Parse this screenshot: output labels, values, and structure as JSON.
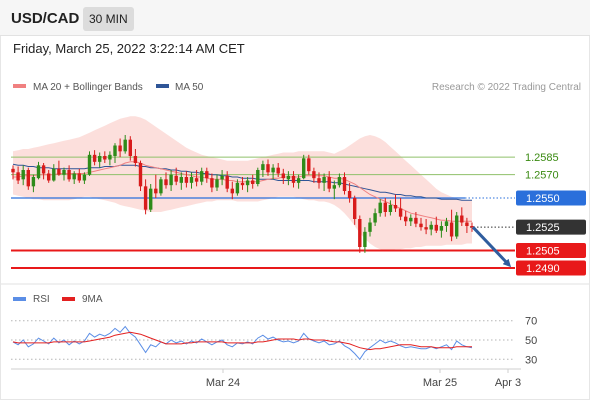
{
  "header": {
    "symbol": "USD/CAD",
    "timeframe": "30 MIN"
  },
  "datetime": "Friday, March 25, 2022 3:22:14 AM CET",
  "legend": {
    "ma20_label": "MA 20 + Bollinger Bands",
    "ma20_color": "#f08080",
    "ma50_label": "MA 50",
    "ma50_color": "#2f5597",
    "credit": "Research © 2022 Trading Central"
  },
  "chart_data": [
    {
      "type": "candlestick",
      "ylim": [
        1.2478,
        1.2634
      ],
      "x_labels": [
        "Mar 24",
        "Mar 25",
        "Apr 3"
      ],
      "levels": [
        {
          "value": 1.2585,
          "label": "1.2585",
          "kind": "resistance-thin",
          "color": "#8fc06a"
        },
        {
          "value": 1.257,
          "label": "1.2570",
          "kind": "resistance-thin",
          "color": "#8fc06a"
        },
        {
          "value": 1.255,
          "label": "1.2550",
          "kind": "pivot",
          "color": "#2a6fdb"
        },
        {
          "value": 1.2525,
          "label": "1.2525",
          "kind": "last-price",
          "color": "#333333"
        },
        {
          "value": 1.2505,
          "label": "1.2505",
          "kind": "support",
          "color": "#e8191a"
        },
        {
          "value": 1.249,
          "label": "1.2490",
          "kind": "support",
          "color": "#e8191a"
        }
      ],
      "candles": [
        [
          1.2575,
          1.2578,
          1.2566,
          1.2572
        ],
        [
          1.2572,
          1.2577,
          1.2562,
          1.2565
        ],
        [
          1.2566,
          1.2578,
          1.2561,
          1.2574
        ],
        [
          1.2574,
          1.2576,
          1.2557,
          1.256
        ],
        [
          1.256,
          1.257,
          1.2555,
          1.2568
        ],
        [
          1.2567,
          1.2581,
          1.2566,
          1.2578
        ],
        [
          1.2578,
          1.258,
          1.2566,
          1.2571
        ],
        [
          1.2571,
          1.2574,
          1.2563,
          1.2565
        ],
        [
          1.2565,
          1.2579,
          1.2564,
          1.2575
        ],
        [
          1.2575,
          1.2582,
          1.2569,
          1.257
        ],
        [
          1.257,
          1.2576,
          1.2565,
          1.2574
        ],
        [
          1.2574,
          1.2578,
          1.2564,
          1.2566
        ],
        [
          1.2566,
          1.2573,
          1.2562,
          1.2571
        ],
        [
          1.2571,
          1.2575,
          1.2563,
          1.2565
        ],
        [
          1.2565,
          1.2572,
          1.2562,
          1.257
        ],
        [
          1.257,
          1.259,
          1.2569,
          1.2587
        ],
        [
          1.2587,
          1.2591,
          1.2578,
          1.2581
        ],
        [
          1.2581,
          1.2589,
          1.2576,
          1.2586
        ],
        [
          1.2586,
          1.259,
          1.258,
          1.2583
        ],
        [
          1.2583,
          1.259,
          1.2578,
          1.2587
        ],
        [
          1.2586,
          1.2597,
          1.258,
          1.2595
        ],
        [
          1.2595,
          1.2601,
          1.2585,
          1.259
        ],
        [
          1.259,
          1.2604,
          1.2588,
          1.26
        ],
        [
          1.26,
          1.2603,
          1.2582,
          1.2586
        ],
        [
          1.2586,
          1.2592,
          1.2577,
          1.258
        ],
        [
          1.258,
          1.2582,
          1.2556,
          1.256
        ],
        [
          1.256,
          1.2566,
          1.2536,
          1.254
        ],
        [
          1.254,
          1.2562,
          1.2538,
          1.2558
        ],
        [
          1.2558,
          1.257,
          1.255,
          1.2554
        ],
        [
          1.2554,
          1.2568,
          1.2552,
          1.2566
        ],
        [
          1.2566,
          1.2572,
          1.2558,
          1.2561
        ],
        [
          1.2561,
          1.2574,
          1.2556,
          1.257
        ],
        [
          1.2569,
          1.2576,
          1.2561,
          1.2564
        ],
        [
          1.2563,
          1.2572,
          1.2557,
          1.2568
        ],
        [
          1.2568,
          1.2573,
          1.2559,
          1.2563
        ],
        [
          1.2563,
          1.2572,
          1.2558,
          1.2568
        ],
        [
          1.2567,
          1.2574,
          1.256,
          1.2564
        ],
        [
          1.2564,
          1.2576,
          1.2561,
          1.2573
        ],
        [
          1.2573,
          1.2576,
          1.2563,
          1.2567
        ],
        [
          1.2567,
          1.2571,
          1.2555,
          1.2559
        ],
        [
          1.2559,
          1.257,
          1.2556,
          1.2566
        ],
        [
          1.2566,
          1.2574,
          1.2561,
          1.2569
        ],
        [
          1.2569,
          1.2573,
          1.2555,
          1.2558
        ],
        [
          1.2558,
          1.2564,
          1.2549,
          1.2554
        ],
        [
          1.2554,
          1.2566,
          1.2552,
          1.2563
        ],
        [
          1.2563,
          1.2568,
          1.2557,
          1.2561
        ],
        [
          1.2561,
          1.2568,
          1.2555,
          1.2565
        ],
        [
          1.2565,
          1.257,
          1.2558,
          1.2562
        ],
        [
          1.2562,
          1.2576,
          1.256,
          1.2574
        ],
        [
          1.2574,
          1.2582,
          1.2568,
          1.2579
        ],
        [
          1.2579,
          1.2583,
          1.2569,
          1.2572
        ],
        [
          1.2572,
          1.2579,
          1.2566,
          1.2576
        ],
        [
          1.2576,
          1.258,
          1.2568,
          1.2571
        ],
        [
          1.2571,
          1.2575,
          1.2562,
          1.2567
        ],
        [
          1.2566,
          1.2573,
          1.2561,
          1.2569
        ],
        [
          1.2569,
          1.2573,
          1.2559,
          1.2563
        ],
        [
          1.2563,
          1.257,
          1.2558,
          1.2567
        ],
        [
          1.2567,
          1.2587,
          1.2566,
          1.2584
        ],
        [
          1.2584,
          1.2587,
          1.257,
          1.2573
        ],
        [
          1.2573,
          1.2576,
          1.2563,
          1.2567
        ],
        [
          1.2567,
          1.2572,
          1.2558,
          1.2563
        ],
        [
          1.2563,
          1.2571,
          1.2556,
          1.2568
        ],
        [
          1.2568,
          1.2573,
          1.2555,
          1.2558
        ],
        [
          1.2558,
          1.2565,
          1.2549,
          1.2561
        ],
        [
          1.2561,
          1.2571,
          1.2559,
          1.2568
        ],
        [
          1.2568,
          1.2572,
          1.2553,
          1.2556
        ],
        [
          1.2556,
          1.2563,
          1.2546,
          1.255
        ],
        [
          1.255,
          1.2552,
          1.2527,
          1.2532
        ],
        [
          1.2532,
          1.2535,
          1.2503,
          1.2508
        ],
        [
          1.2508,
          1.2525,
          1.2503,
          1.2521
        ],
        [
          1.2521,
          1.2533,
          1.2517,
          1.2529
        ],
        [
          1.2529,
          1.2541,
          1.2526,
          1.2537
        ],
        [
          1.2537,
          1.2549,
          1.2534,
          1.2546
        ],
        [
          1.2546,
          1.255,
          1.2534,
          1.2538
        ],
        [
          1.2538,
          1.2548,
          1.2535,
          1.2544
        ],
        [
          1.2544,
          1.2553,
          1.2538,
          1.2541
        ],
        [
          1.2541,
          1.255,
          1.2531,
          1.2534
        ],
        [
          1.2534,
          1.2539,
          1.2526,
          1.253
        ],
        [
          1.253,
          1.2536,
          1.2526,
          1.2533
        ],
        [
          1.2533,
          1.2538,
          1.2525,
          1.2528
        ],
        [
          1.2528,
          1.2533,
          1.2522,
          1.2525
        ],
        [
          1.2525,
          1.2532,
          1.2519,
          1.2523
        ],
        [
          1.2523,
          1.253,
          1.2518,
          1.2527
        ],
        [
          1.2527,
          1.2534,
          1.252,
          1.2522
        ],
        [
          1.2522,
          1.253,
          1.2516,
          1.2526
        ],
        [
          1.2526,
          1.2533,
          1.2521,
          1.253
        ],
        [
          1.2529,
          1.254,
          1.2513,
          1.2517
        ],
        [
          1.2517,
          1.2538,
          1.2515,
          1.2535
        ],
        [
          1.2535,
          1.2542,
          1.2526,
          1.2529
        ],
        [
          1.2529,
          1.2533,
          1.252,
          1.2526
        ],
        [
          1.2526,
          1.2529,
          1.2521,
          1.2525
        ]
      ],
      "candle_colors": {
        "up": "#2e8b1a",
        "down": "#d81b1b"
      },
      "ma20": [
        1.2568,
        1.2568,
        1.2569,
        1.2569,
        1.2569,
        1.257,
        1.257,
        1.257,
        1.257,
        1.2571,
        1.2571,
        1.2571,
        1.2571,
        1.2571,
        1.2571,
        1.2572,
        1.2573,
        1.2574,
        1.2575,
        1.2576,
        1.2577,
        1.2578,
        1.258,
        1.2581,
        1.2581,
        1.258,
        1.2578,
        1.2577,
        1.2576,
        1.2575,
        1.2574,
        1.2573,
        1.2572,
        1.2571,
        1.257,
        1.2569,
        1.2568,
        1.2568,
        1.2567,
        1.2566,
        1.2566,
        1.2566,
        1.2565,
        1.2565,
        1.2564,
        1.2564,
        1.2564,
        1.2564,
        1.2564,
        1.2565,
        1.2566,
        1.2567,
        1.2567,
        1.2568,
        1.2568,
        1.2568,
        1.2568,
        1.2569,
        1.2569,
        1.2569,
        1.2569,
        1.2569,
        1.2568,
        1.2567,
        1.2567,
        1.2566,
        1.2564,
        1.2562,
        1.2559,
        1.2556,
        1.2553,
        1.2551,
        1.2549,
        1.2547,
        1.2545,
        1.2543,
        1.2541,
        1.2539,
        1.2537,
        1.2536,
        1.2535,
        1.2534,
        1.2533,
        1.2532,
        1.2531,
        1.2531,
        1.253,
        1.253,
        1.253,
        1.253,
        1.253
      ],
      "ma50": [
        1.2579,
        1.2578,
        1.2578,
        1.2577,
        1.2577,
        1.2576,
        1.2576,
        1.2576,
        1.2575,
        1.2575,
        1.2575,
        1.2575,
        1.2575,
        1.2575,
        1.2575,
        1.2576,
        1.2576,
        1.2576,
        1.2577,
        1.2577,
        1.2577,
        1.2578,
        1.2578,
        1.2578,
        1.2578,
        1.2577,
        1.2577,
        1.2576,
        1.2576,
        1.2575,
        1.2575,
        1.2574,
        1.2574,
        1.2573,
        1.2573,
        1.2572,
        1.2572,
        1.2571,
        1.2571,
        1.257,
        1.257,
        1.2569,
        1.2569,
        1.2568,
        1.2568,
        1.2567,
        1.2567,
        1.2567,
        1.2566,
        1.2566,
        1.2566,
        1.2566,
        1.2565,
        1.2565,
        1.2565,
        1.2565,
        1.2565,
        1.2565,
        1.2565,
        1.2564,
        1.2564,
        1.2564,
        1.2564,
        1.2563,
        1.2563,
        1.2562,
        1.2561,
        1.256,
        1.2559,
        1.2558,
        1.2557,
        1.2556,
        1.2555,
        1.2555,
        1.2554,
        1.2553,
        1.2553,
        1.2552,
        1.2552,
        1.2551,
        1.2551,
        1.255,
        1.255,
        1.255,
        1.2549,
        1.2549,
        1.2549,
        1.2549,
        1.2548,
        1.2548,
        1.2548
      ],
      "bb_upper": [
        1.259,
        1.2591,
        1.2592,
        1.2592,
        1.2593,
        1.2594,
        1.2595,
        1.2596,
        1.2597,
        1.2598,
        1.2599,
        1.26,
        1.2601,
        1.2602,
        1.2604,
        1.2606,
        1.2608,
        1.261,
        1.2612,
        1.2614,
        1.2616,
        1.2618,
        1.2619,
        1.262,
        1.262,
        1.2619,
        1.2617,
        1.2614,
        1.2611,
        1.2608,
        1.2605,
        1.2602,
        1.2599,
        1.2596,
        1.2593,
        1.2591,
        1.2589,
        1.2587,
        1.2586,
        1.2585,
        1.2584,
        1.2583,
        1.2582,
        1.2582,
        1.2582,
        1.2582,
        1.2582,
        1.2583,
        1.2584,
        1.2585,
        1.2586,
        1.2587,
        1.2588,
        1.2589,
        1.2589,
        1.2589,
        1.259,
        1.259,
        1.259,
        1.259,
        1.259,
        1.259,
        1.2589,
        1.2588,
        1.259,
        1.2592,
        1.2595,
        1.2598,
        1.2601,
        1.2603,
        1.2604,
        1.2603,
        1.2601,
        1.2598,
        1.2594,
        1.259,
        1.2586,
        1.2582,
        1.2578,
        1.2574,
        1.257,
        1.2566,
        1.2562,
        1.2558,
        1.2555,
        1.2553,
        1.2551,
        1.255,
        1.2549,
        1.2548,
        1.2548
      ],
      "bb_lower": [
        1.2553,
        1.2552,
        1.2551,
        1.255,
        1.2549,
        1.2549,
        1.2548,
        1.2548,
        1.2548,
        1.2548,
        1.2548,
        1.2548,
        1.2549,
        1.255,
        1.2551,
        1.2551,
        1.255,
        1.2549,
        1.2548,
        1.2547,
        1.2546,
        1.2544,
        1.2543,
        1.2542,
        1.2541,
        1.254,
        1.2539,
        1.2538,
        1.2538,
        1.2538,
        1.2539,
        1.254,
        1.2541,
        1.2542,
        1.2543,
        1.2544,
        1.2545,
        1.2546,
        1.2547,
        1.2547,
        1.2548,
        1.2548,
        1.2548,
        1.2548,
        1.2547,
        1.2547,
        1.2547,
        1.2547,
        1.2547,
        1.2548,
        1.2549,
        1.255,
        1.2551,
        1.2551,
        1.2551,
        1.2551,
        1.255,
        1.2549,
        1.2548,
        1.2548,
        1.2547,
        1.2547,
        1.2546,
        1.2544,
        1.2541,
        1.2537,
        1.2532,
        1.2526,
        1.252,
        1.2515,
        1.2511,
        1.2508,
        1.2506,
        1.2505,
        1.2505,
        1.2506,
        1.2506,
        1.2507,
        1.2507,
        1.2508,
        1.2508,
        1.2509,
        1.2509,
        1.2509,
        1.2509,
        1.251,
        1.251,
        1.251,
        1.251,
        1.2511,
        1.2511
      ],
      "forecast_arrow": {
        "from": 1.2525,
        "to": 1.249,
        "color": "#2f5d9e"
      }
    },
    {
      "type": "line",
      "indicator": "RSI",
      "ylim": [
        22,
        78
      ],
      "y_ticks": [
        70,
        50,
        30
      ],
      "series": [
        {
          "name": "RSI",
          "color": "#5b8ee6",
          "values": [
            48,
            45,
            50,
            43,
            46,
            52,
            49,
            46,
            52,
            47,
            50,
            45,
            49,
            46,
            49,
            57,
            53,
            56,
            54,
            57,
            62,
            58,
            64,
            57,
            53,
            45,
            37,
            45,
            43,
            48,
            46,
            50,
            47,
            49,
            46,
            49,
            47,
            51,
            48,
            45,
            48,
            50,
            45,
            43,
            47,
            46,
            48,
            46,
            52,
            55,
            51,
            53,
            50,
            48,
            49,
            47,
            49,
            57,
            51,
            49,
            47,
            49,
            45,
            46,
            49,
            44,
            41,
            36,
            30,
            38,
            42,
            46,
            50,
            47,
            49,
            47,
            44,
            42,
            43,
            42,
            41,
            41,
            43,
            41,
            43,
            45,
            40,
            49,
            45,
            43,
            42
          ]
        },
        {
          "name": "9MA",
          "color": "#e32020",
          "values": [
            48,
            47,
            47,
            47,
            47,
            47,
            47,
            47,
            48,
            48,
            48,
            48,
            48,
            48,
            48,
            49,
            50,
            51,
            52,
            53,
            55,
            56,
            57,
            58,
            57,
            56,
            54,
            52,
            50,
            48,
            46,
            46,
            46,
            46,
            47,
            47,
            48,
            48,
            48,
            48,
            48,
            48,
            47,
            47,
            47,
            47,
            47,
            47,
            48,
            48,
            49,
            50,
            51,
            51,
            51,
            51,
            50,
            51,
            51,
            50,
            50,
            50,
            49,
            48,
            48,
            47,
            46,
            44,
            42,
            41,
            40,
            41,
            41,
            42,
            43,
            44,
            45,
            45,
            45,
            44,
            43,
            43,
            43,
            42,
            42,
            42,
            42,
            43,
            43,
            43,
            43
          ]
        }
      ]
    }
  ],
  "rsi_legend": {
    "rsi_label": "RSI",
    "ma_label": "9MA"
  }
}
